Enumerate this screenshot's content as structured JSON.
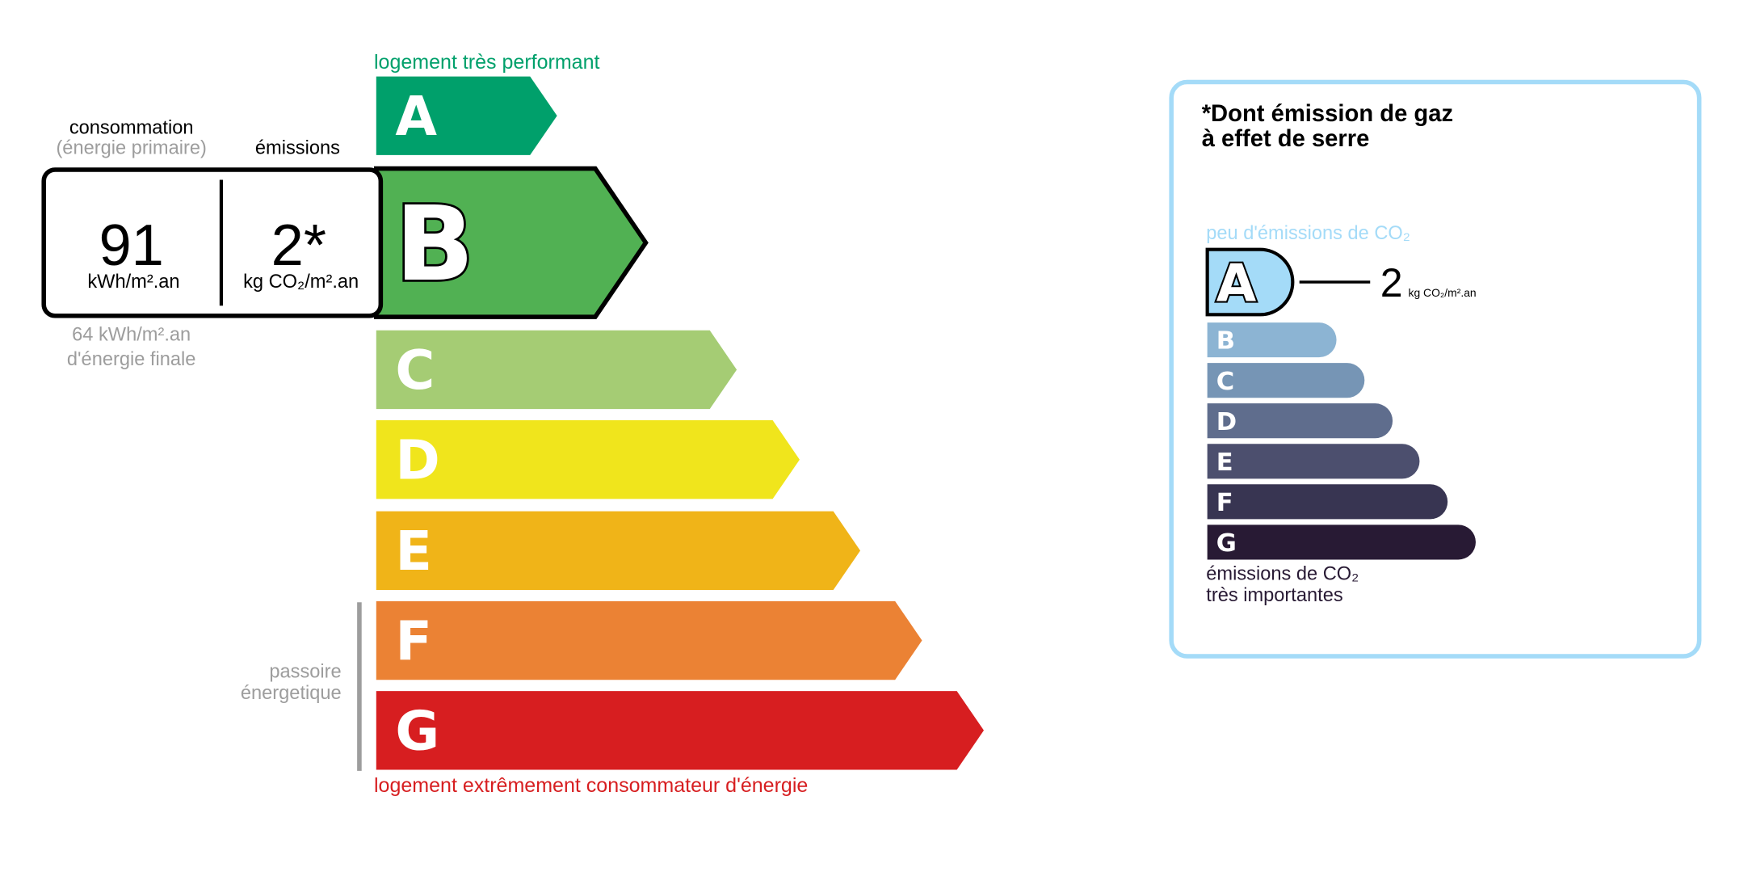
{
  "energy": {
    "top_label": "logement très performant",
    "bottom_label": "logement extrêmement consommateur d'énergie",
    "top_label_color": "#00a06b",
    "bottom_label_color": "#d71e20",
    "current_class": "B",
    "classes": [
      {
        "letter": "A",
        "color": "#00a06b"
      },
      {
        "letter": "B",
        "color": "#51b153"
      },
      {
        "letter": "C",
        "color": "#a5cc74"
      },
      {
        "letter": "D",
        "color": "#f0e51c"
      },
      {
        "letter": "E",
        "color": "#f0b418"
      },
      {
        "letter": "F",
        "color": "#eb8234"
      },
      {
        "letter": "G",
        "color": "#d71e20"
      }
    ],
    "passoire_label_1": "passoire",
    "passoire_label_2": "énergetique"
  },
  "indicator": {
    "consumption_header": "consommation",
    "consumption_sub": "(énergie primaire)",
    "emissions_header": "émissions",
    "consumption_value": "91",
    "consumption_unit": "kWh/m².an",
    "emissions_value": "2*",
    "emissions_unit": "kg CO₂/m².an",
    "final_energy_value": "64 kWh/m².an",
    "final_energy_label": "d'énergie finale"
  },
  "ghg": {
    "title_line1": "*Dont émission de gaz",
    "title_line2": "à effet de serre",
    "top_label": "peu d'émissions de CO₂",
    "bottom_label_1": "émissions de CO₂",
    "bottom_label_2": "très importantes",
    "current_class": "A",
    "value": "2",
    "unit": "kg CO₂/m².an",
    "border_color": "#a4dbf8",
    "classes": [
      {
        "letter": "A",
        "color": "#a4dbf8"
      },
      {
        "letter": "B",
        "color": "#8cb4d3"
      },
      {
        "letter": "C",
        "color": "#7695b5"
      },
      {
        "letter": "D",
        "color": "#5f6d8d"
      },
      {
        "letter": "E",
        "color": "#4c4f6e"
      },
      {
        "letter": "F",
        "color": "#383552"
      },
      {
        "letter": "G",
        "color": "#281a34"
      }
    ]
  }
}
